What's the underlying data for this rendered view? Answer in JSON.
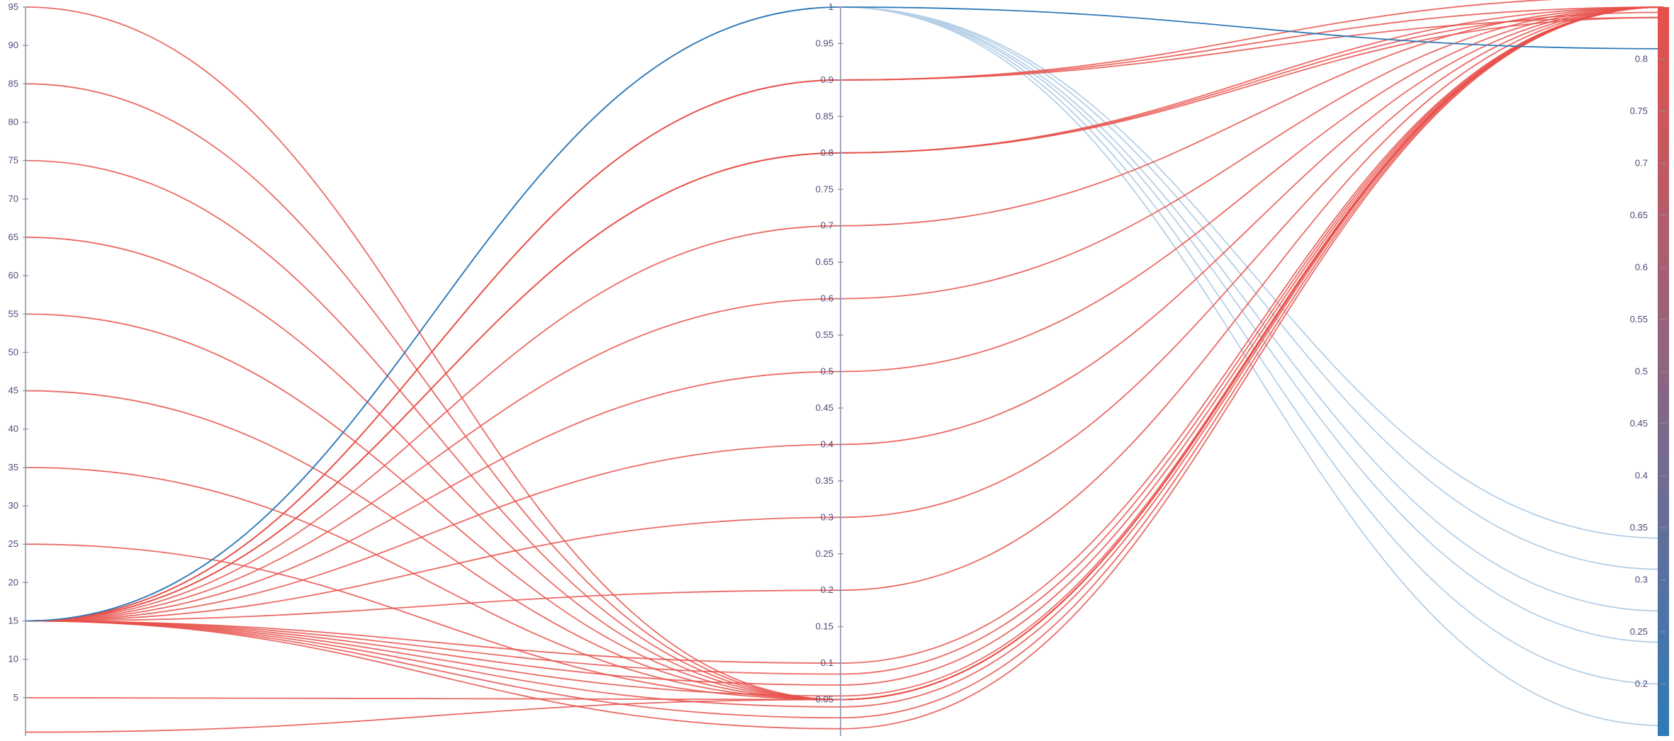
{
  "chart_data": {
    "type": "parallel-coordinates",
    "axes": [
      {
        "ticks": [
          5,
          10,
          15,
          20,
          25,
          30,
          35,
          40,
          45,
          50,
          55,
          60,
          65,
          70,
          75,
          80,
          85,
          90,
          95
        ],
        "range": [
          0,
          95
        ]
      },
      {
        "ticks": [
          0.05,
          0.1,
          0.15,
          0.2,
          0.25,
          0.3,
          0.35,
          0.4,
          0.45,
          0.5,
          0.55,
          0.6,
          0.65,
          0.7,
          0.75,
          0.8,
          0.85,
          0.9,
          0.95,
          1
        ],
        "range": [
          0,
          1
        ]
      },
      {
        "ticks": [
          0.2,
          0.25,
          0.3,
          0.35,
          0.4,
          0.45,
          0.5,
          0.55,
          0.6,
          0.65,
          0.7,
          0.75,
          0.8
        ],
        "range": [
          0.15,
          0.85
        ]
      }
    ],
    "colorscale": {
      "low": "#2f7ab8",
      "high": "#e8504a",
      "range": [
        0.15,
        0.85
      ]
    },
    "lines": [
      {
        "values": [
          15,
          1.0,
          0.81
        ],
        "color": "#2f7ab8"
      },
      {
        "values": [
          15,
          0.9,
          0.84
        ],
        "color": "#e8504a"
      },
      {
        "values": [
          15,
          0.9,
          0.85
        ],
        "color": "#e8504a"
      },
      {
        "values": [
          15,
          0.9,
          0.86
        ],
        "color": "#e8504a"
      },
      {
        "values": [
          15,
          0.8,
          0.84
        ],
        "color": "#e8504a"
      },
      {
        "values": [
          15,
          0.8,
          0.845
        ],
        "color": "#e8504a"
      },
      {
        "values": [
          15,
          0.8,
          0.85
        ],
        "color": "#e8504a"
      },
      {
        "values": [
          15,
          0.7,
          0.85
        ],
        "color": "#e8504a"
      },
      {
        "values": [
          15,
          0.6,
          0.85
        ],
        "color": "#e8504a"
      },
      {
        "values": [
          15,
          0.5,
          0.85
        ],
        "color": "#e8504a"
      },
      {
        "values": [
          15,
          0.4,
          0.85
        ],
        "color": "#e8504a"
      },
      {
        "values": [
          15,
          0.3,
          0.85
        ],
        "color": "#e8504a"
      },
      {
        "values": [
          15,
          0.2,
          0.85
        ],
        "color": "#e8504a"
      },
      {
        "values": [
          15,
          0.1,
          0.85
        ],
        "color": "#e8504a"
      },
      {
        "values": [
          15,
          0.085,
          0.85
        ],
        "color": "#e8504a"
      },
      {
        "values": [
          15,
          0.07,
          0.85
        ],
        "color": "#e8504a"
      },
      {
        "values": [
          15,
          0.055,
          0.85
        ],
        "color": "#e8504a"
      },
      {
        "values": [
          15,
          0.04,
          0.85
        ],
        "color": "#e8504a"
      },
      {
        "values": [
          15,
          0.025,
          0.85
        ],
        "color": "#e8504a"
      },
      {
        "values": [
          15,
          0.01,
          0.85
        ],
        "color": "#e8504a"
      },
      {
        "values": [
          95,
          0.05,
          0.85
        ],
        "color": "#e8504a"
      },
      {
        "values": [
          85,
          0.05,
          0.85
        ],
        "color": "#e8504a"
      },
      {
        "values": [
          75,
          0.05,
          0.85
        ],
        "color": "#e8504a"
      },
      {
        "values": [
          65,
          0.05,
          0.85
        ],
        "color": "#e8504a"
      },
      {
        "values": [
          55,
          0.05,
          0.85
        ],
        "color": "#e8504a"
      },
      {
        "values": [
          45,
          0.05,
          0.85
        ],
        "color": "#e8504a"
      },
      {
        "values": [
          35,
          0.05,
          0.85
        ],
        "color": "#e8504a"
      },
      {
        "values": [
          25,
          0.05,
          0.85
        ],
        "color": "#e8504a"
      },
      {
        "values": [
          5,
          0.05,
          0.85
        ],
        "color": "#e8504a"
      },
      {
        "values": [
          0.5,
          0.05,
          0.85
        ],
        "color": "#e8504a"
      },
      {
        "values": [
          15,
          1.0,
          0.34
        ],
        "color": "#b5cfe6"
      },
      {
        "values": [
          15,
          1.0,
          0.31
        ],
        "color": "#b5cfe6"
      },
      {
        "values": [
          15,
          1.0,
          0.27
        ],
        "color": "#b5cfe6"
      },
      {
        "values": [
          15,
          1.0,
          0.24
        ],
        "color": "#b5cfe6"
      },
      {
        "values": [
          15,
          1.0,
          0.2
        ],
        "color": "#b5cfe6"
      },
      {
        "values": [
          15,
          1.0,
          0.16
        ],
        "color": "#b5cfe6"
      }
    ]
  }
}
